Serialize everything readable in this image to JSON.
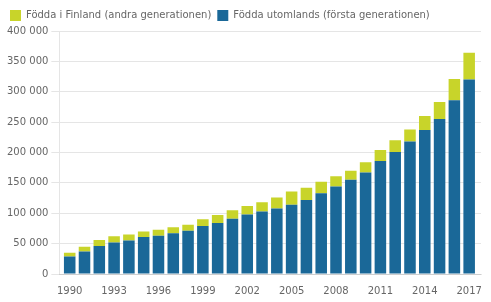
{
  "chart_data": {
    "type": "bar",
    "stacked": true,
    "x": [
      1990,
      1991,
      1992,
      1993,
      1994,
      1995,
      1996,
      1997,
      1998,
      1999,
      2000,
      2001,
      2002,
      2003,
      2004,
      2005,
      2006,
      2007,
      2008,
      2009,
      2010,
      2011,
      2012,
      2013,
      2014,
      2015,
      2016,
      2017
    ],
    "series": [
      {
        "name": "Födda utomlands (första generationen)",
        "color": "#1a6898",
        "values": [
          29000,
          37000,
          46000,
          52000,
          55000,
          61000,
          63000,
          67000,
          71000,
          79000,
          84000,
          91000,
          98000,
          103000,
          108000,
          114000,
          122000,
          133000,
          144000,
          155000,
          167000,
          186000,
          201000,
          218000,
          237000,
          255000,
          286000,
          320000
        ]
      },
      {
        "name": "Födda i Finland (andra generationen)",
        "color": "#c8d42a",
        "values": [
          6000,
          8000,
          10000,
          10000,
          10000,
          9000,
          10000,
          10000,
          10000,
          11000,
          13000,
          14000,
          14000,
          15000,
          18000,
          22000,
          20000,
          19000,
          17000,
          15000,
          17000,
          18000,
          19000,
          20000,
          23000,
          28000,
          35000,
          44000
        ]
      }
    ],
    "xlim": [
      1989.3,
      2017.8
    ],
    "xticks": [
      1990,
      1993,
      1996,
      1999,
      2002,
      2005,
      2008,
      2011,
      2014,
      2017
    ],
    "ylim": [
      0,
      400000
    ],
    "yticks": [
      0,
      {
        "value": 50000,
        "label": "50 000"
      },
      {
        "value": 100000,
        "label": "100 000"
      },
      {
        "value": 150000,
        "label": "150 000"
      },
      {
        "value": 200000,
        "label": "200 000"
      },
      {
        "value": 250000,
        "label": "250 000"
      },
      {
        "value": 300000,
        "label": "300 000"
      },
      {
        "value": 350000,
        "label": "350 000"
      },
      {
        "value": 400000,
        "label": "400 000"
      }
    ],
    "grid": "y",
    "legend": "upper left"
  }
}
